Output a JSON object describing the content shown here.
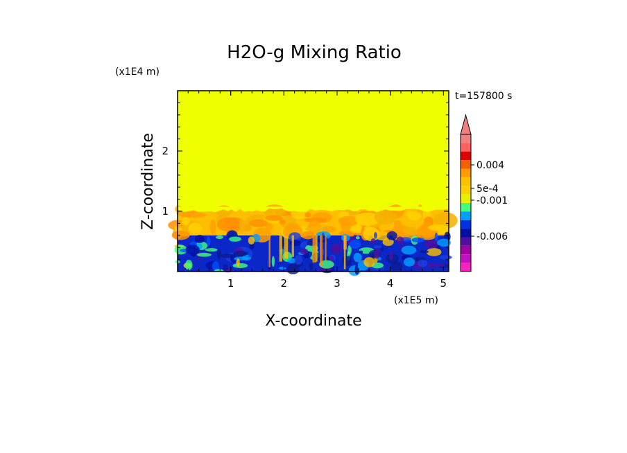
{
  "chart_data": {
    "type": "heatmap",
    "title": "H2O-g Mixing Ratio",
    "xlabel": "X-coordinate",
    "ylabel": "Z-coordinate",
    "x_multiplier": "(x1E5 m)",
    "y_multiplier": "(x1E4 m)",
    "time_label": "t=157800 s",
    "x_ticks": [
      "1",
      "2",
      "3",
      "4",
      "5"
    ],
    "y_ticks": [
      "1",
      "2"
    ],
    "xlim": [
      0,
      5.1
    ],
    "ylim": [
      0,
      3
    ],
    "layers": [
      {
        "z_range": [
          1.04,
          3.0
        ],
        "value_band": "uniform (above 0.004)"
      },
      {
        "z_range": [
          0.6,
          1.04
        ],
        "value_band": "5e-4 to 0.004, mottled"
      },
      {
        "z_range": [
          0,
          0.6
        ],
        "value_band": "-0.006 to 5e-4, mottled"
      }
    ],
    "colorbar": {
      "tick_labels": [
        "0.004",
        "5e-4",
        "-0.001",
        "-0.006"
      ],
      "colors_top_to_bottom": [
        "#f08080",
        "#ff6060",
        "#e00000",
        "#f46000",
        "#ff9a00",
        "#ffc000",
        "#ffd000",
        "#e8f000",
        "#40ff80",
        "#00a0ff",
        "#0030e0",
        "#0010a0",
        "#5010a0",
        "#a000a0",
        "#c010c0",
        "#ff20c0"
      ]
    },
    "colors": {
      "top_layer": "#f0ff00",
      "middle_layer": "#ffbf00",
      "bottom_layer": "#0a28c8"
    }
  }
}
